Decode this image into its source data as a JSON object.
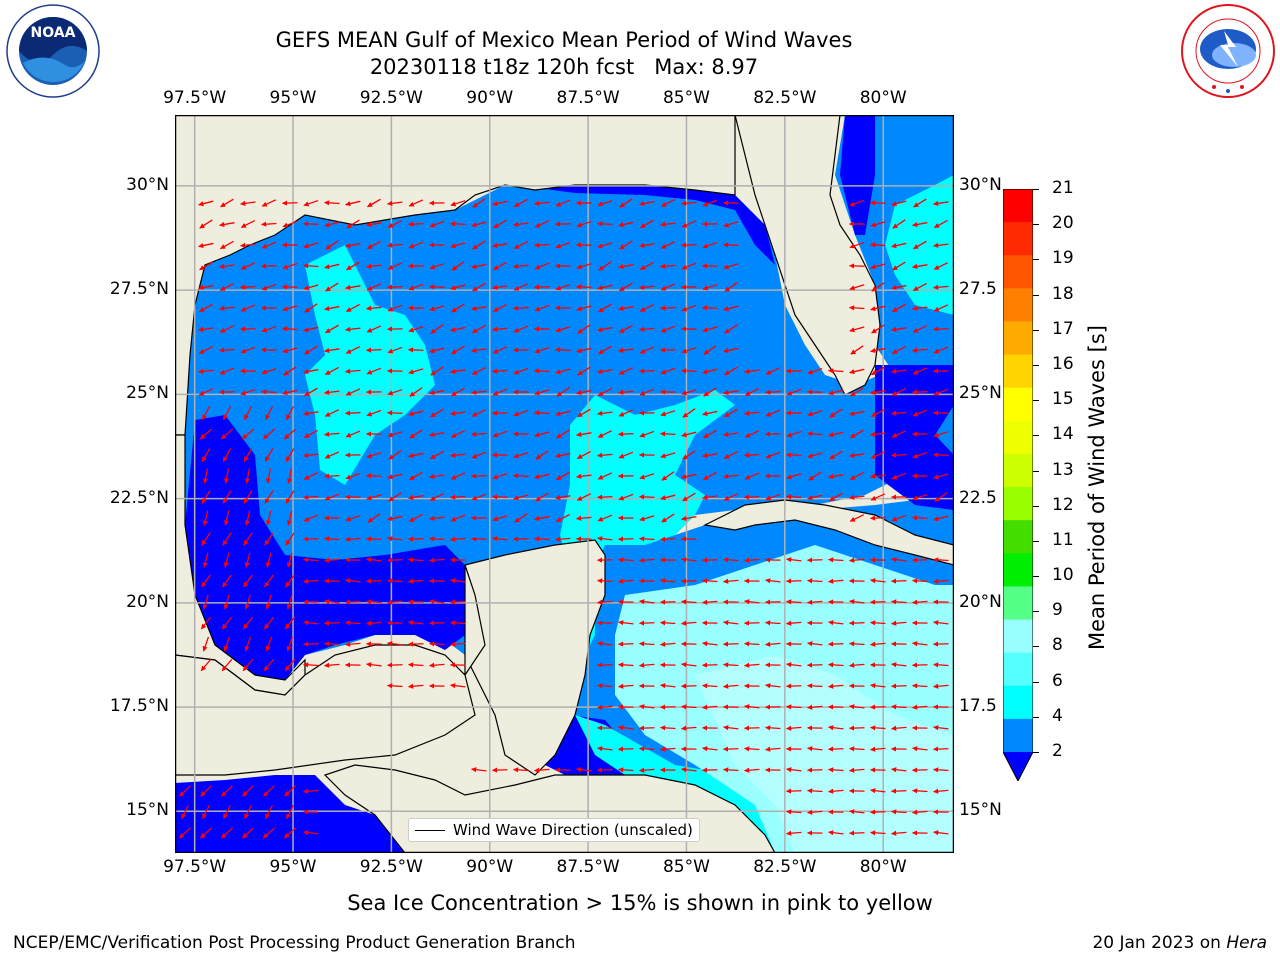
{
  "title": {
    "line1": "GEFS MEAN Gulf of Mexico Mean Period of Wind Waves",
    "line2": "20230118 t18z 120h fcst   Max: 8.97"
  },
  "map": {
    "lon_range": [
      -98.0,
      -78.2
    ],
    "lat_range": [
      14.0,
      31.7
    ],
    "lon_ticks": [
      "97.5°W",
      "95°W",
      "92.5°W",
      "90°W",
      "87.5°W",
      "85°W",
      "82.5°W",
      "80°W"
    ],
    "lon_values": [
      -97.5,
      -95,
      -92.5,
      -90,
      -87.5,
      -85,
      -82.5,
      -80
    ],
    "lat_ticks_left": [
      "30°N",
      "27.5°N",
      "25°N",
      "22.5°N",
      "20°N",
      "17.5°N",
      "15°N"
    ],
    "lat_ticks_right": [
      "30°N",
      "27.5",
      "25°N",
      "22.5",
      "20°N",
      "17.5",
      "15°N"
    ],
    "lat_values": [
      30,
      27.5,
      25,
      22.5,
      20,
      17.5,
      15
    ],
    "legend_label": "Wind Wave Direction (unscaled)",
    "colors": {
      "land": "#efedde",
      "grid": "#b0b0b0",
      "arrow": "#ff0000"
    }
  },
  "colorbar": {
    "label": "Mean Period of Wind Waves [s]",
    "ticks": [
      "21",
      "20",
      "19",
      "18",
      "17",
      "16",
      "15",
      "14",
      "13",
      "12",
      "11",
      "10",
      "9",
      "8",
      "6",
      "4",
      "2"
    ],
    "colors": [
      "#ff0000",
      "#ff2a00",
      "#ff5500",
      "#ff8000",
      "#ffaa00",
      "#ffd400",
      "#ffff00",
      "#eeff00",
      "#ccff00",
      "#99ff00",
      "#44dd00",
      "#00ee00",
      "#55ff88",
      "#99ffff",
      "#55ffff",
      "#00ffff",
      "#0088ff",
      "#0000ff"
    ]
  },
  "caption": "Sea Ice Concentration > 15% is shown in pink to yellow",
  "footer": {
    "left": "NCEP/EMC/Verification Post Processing Product Generation Branch",
    "right_date": "20 Jan 2023 on ",
    "right_machine": "Hera"
  },
  "logos": {
    "left": "NOAA",
    "right": "NATIONAL WEATHER SERVICE"
  }
}
